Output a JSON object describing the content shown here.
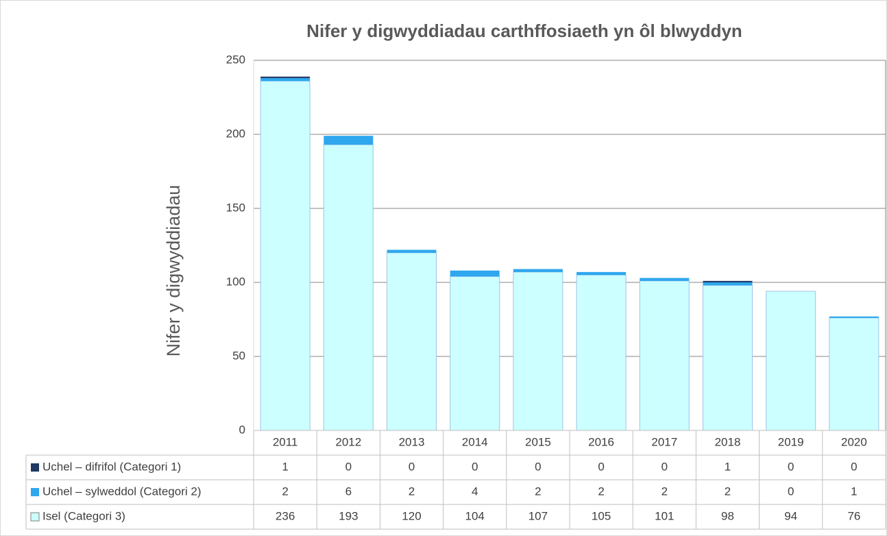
{
  "chart_data": {
    "type": "bar",
    "stacked": true,
    "title": "Nifer y digwyddiadau carthffosiaeth yn ôl blwyddyn",
    "y_label": "Nifer y digwyddiadau",
    "categories": [
      "2011",
      "2012",
      "2013",
      "2014",
      "2015",
      "2016",
      "2017",
      "2018",
      "2019",
      "2020"
    ],
    "series": [
      {
        "name": "Uchel – difrifol (Categori 1)",
        "color": "#1f3864",
        "values": [
          1,
          0,
          0,
          0,
          0,
          0,
          0,
          1,
          0,
          0
        ]
      },
      {
        "name": "Uchel – sylweddol (Categori 2)",
        "color": "#2ea7ee",
        "values": [
          2,
          6,
          2,
          4,
          2,
          2,
          2,
          2,
          0,
          1
        ]
      },
      {
        "name": "Isel (Categori 3)",
        "color": "#ccffff",
        "values": [
          236,
          193,
          120,
          104,
          107,
          105,
          101,
          98,
          94,
          76
        ]
      }
    ],
    "ylim": [
      0,
      250
    ],
    "yticks": [
      0,
      50,
      100,
      150,
      200,
      250
    ],
    "grid": true
  }
}
